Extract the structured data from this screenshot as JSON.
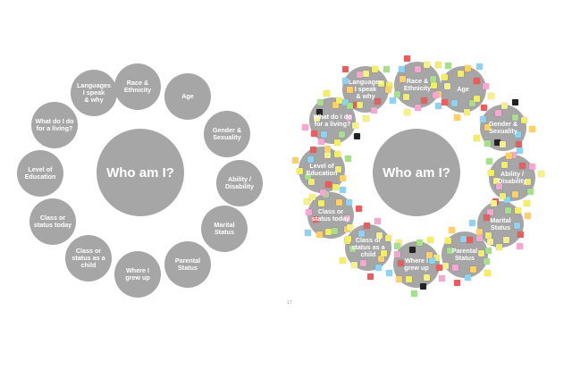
{
  "diagram": {
    "center_label": "Who am I?",
    "topics": [
      {
        "id": "race",
        "label": "Race &\nEthnicity"
      },
      {
        "id": "age",
        "label": "Age"
      },
      {
        "id": "gender",
        "label": "Gender &\nSexuality"
      },
      {
        "id": "ability",
        "label": "Ability /\nDisability"
      },
      {
        "id": "marital",
        "label": "Marital\nStatus"
      },
      {
        "id": "parental",
        "label": "Parental\nStatus"
      },
      {
        "id": "grew-up",
        "label": "Where I\ngrew up"
      },
      {
        "id": "class-child",
        "label": "Class or\nstatus as a\nchild"
      },
      {
        "id": "class-today",
        "label": "Class or\nstatus today"
      },
      {
        "id": "education",
        "label": "Level of\nEducation"
      },
      {
        "id": "living",
        "label": "What do I do\nfor a living?"
      },
      {
        "id": "languages",
        "label": "Languages\nI speak\n& why"
      }
    ]
  },
  "right_panel": {
    "corner_marker": "17"
  },
  "colors": {
    "circle": "#a6a6a6",
    "text": "#ffffff",
    "sticky_notes": [
      "#f2ee6a",
      "#f5f08a",
      "#8fd3f4",
      "#a7e08a",
      "#f7a8d0",
      "#ffd166",
      "#222222",
      "#e85d5d"
    ]
  }
}
